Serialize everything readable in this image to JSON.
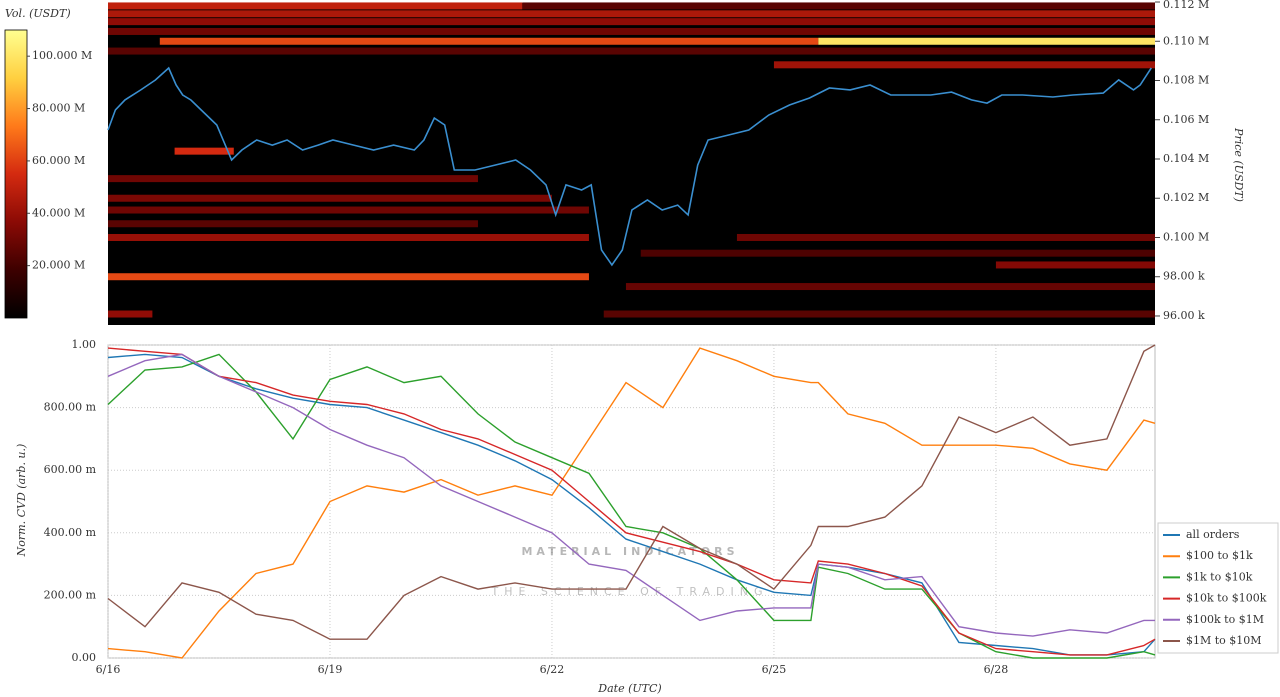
{
  "chart_data": [
    {
      "type": "heatmap",
      "colorbar_label": "Vol. (USDT)",
      "y_label": "Price (USDT)",
      "xlim": [
        16,
        30.15
      ],
      "ylim": [
        95540,
        111950
      ],
      "yticks": [
        {
          "value": 96000,
          "label": "96.00 k"
        },
        {
          "value": 98000,
          "label": "98.00 k"
        },
        {
          "value": 100000,
          "label": "0.100 M"
        },
        {
          "value": 102000,
          "label": "0.102 M"
        },
        {
          "value": 104000,
          "label": "0.104 M"
        },
        {
          "value": 106000,
          "label": "0.106 M"
        },
        {
          "value": 108000,
          "label": "0.108 M"
        },
        {
          "value": 110000,
          "label": "0.110 M"
        },
        {
          "value": 112000,
          "label": "0.112 M"
        }
      ],
      "clim": [
        0,
        110000000
      ],
      "cticks": [
        {
          "value": 20000000,
          "label": "20.000 M"
        },
        {
          "value": 40000000,
          "label": "40.000 M"
        },
        {
          "value": 60000000,
          "label": "60.000 M"
        },
        {
          "value": 80000000,
          "label": "80.000 M"
        },
        {
          "value": 100000000,
          "label": "100.000 M"
        }
      ],
      "colorscale": [
        "#000000",
        "#3d0000",
        "#8b0a05",
        "#d42a10",
        "#ff7a1a",
        "#ffd040",
        "#ffff90"
      ],
      "bands": [
        {
          "price": 111800,
          "start": 16,
          "end": 21.6,
          "volume": 50000000
        },
        {
          "price": 111800,
          "start": 21.6,
          "end": 30.15,
          "volume": 25000000
        },
        {
          "price": 111400,
          "start": 16,
          "end": 30.15,
          "volume": 45000000
        },
        {
          "price": 111000,
          "start": 16,
          "end": 30.15,
          "volume": 38000000
        },
        {
          "price": 110500,
          "start": 16,
          "end": 30.15,
          "volume": 30000000
        },
        {
          "price": 110000,
          "start": 16.7,
          "end": 25.6,
          "volume": 62000000
        },
        {
          "price": 110000,
          "start": 25.6,
          "end": 30.15,
          "volume": 100000000
        },
        {
          "price": 109500,
          "start": 16,
          "end": 30.15,
          "volume": 25000000
        },
        {
          "price": 108800,
          "start": 25,
          "end": 30.15,
          "volume": 42000000
        },
        {
          "price": 104400,
          "start": 16.9,
          "end": 17.7,
          "volume": 55000000
        },
        {
          "price": 103000,
          "start": 16,
          "end": 21,
          "volume": 30000000
        },
        {
          "price": 102000,
          "start": 16,
          "end": 22,
          "volume": 33000000
        },
        {
          "price": 101400,
          "start": 16,
          "end": 22.5,
          "volume": 30000000
        },
        {
          "price": 100700,
          "start": 16,
          "end": 21,
          "volume": 25000000
        },
        {
          "price": 100000,
          "start": 16,
          "end": 22.5,
          "volume": 40000000
        },
        {
          "price": 100000,
          "start": 24.5,
          "end": 30.15,
          "volume": 30000000
        },
        {
          "price": 99200,
          "start": 23.2,
          "end": 30.15,
          "volume": 22000000
        },
        {
          "price": 98600,
          "start": 28,
          "end": 30.15,
          "volume": 35000000
        },
        {
          "price": 98000,
          "start": 16,
          "end": 22.5,
          "volume": 62000000
        },
        {
          "price": 97500,
          "start": 23,
          "end": 30.15,
          "volume": 28000000
        },
        {
          "price": 96100,
          "start": 16,
          "end": 16.6,
          "volume": 38000000
        },
        {
          "price": 96100,
          "start": 22.7,
          "end": 30.15,
          "volume": 25000000
        }
      ],
      "price_line": {
        "color": "#3a8fd0",
        "x": [
          16.0,
          16.1,
          16.23,
          16.44,
          16.64,
          16.82,
          16.92,
          17.01,
          17.12,
          17.26,
          17.47,
          17.67,
          17.81,
          18.01,
          18.22,
          18.42,
          18.63,
          18.84,
          19.04,
          19.32,
          19.59,
          19.86,
          20.14,
          20.27,
          20.41,
          20.55,
          20.68,
          20.96,
          21.23,
          21.51,
          21.71,
          21.92,
          22.05,
          22.19,
          22.4,
          22.53,
          22.67,
          22.81,
          22.95,
          23.08,
          23.29,
          23.49,
          23.7,
          23.84,
          23.97,
          24.11,
          24.38,
          24.66,
          24.93,
          25.21,
          25.48,
          25.75,
          26.03,
          26.3,
          26.58,
          26.85,
          27.12,
          27.4,
          27.67,
          27.88,
          28.08,
          28.36,
          28.77,
          29.04,
          29.45,
          29.66,
          29.86,
          29.95,
          30.1
        ],
        "values": [
          105480,
          106500,
          107010,
          107516,
          108025,
          108637,
          107770,
          107261,
          107006,
          106496,
          105730,
          103950,
          104460,
          104970,
          104710,
          104970,
          104460,
          104710,
          104970,
          104710,
          104460,
          104710,
          104460,
          104970,
          106090,
          105730,
          103440,
          103440,
          103690,
          103950,
          103440,
          102680,
          101150,
          102680,
          102420,
          102680,
          99360,
          98600,
          99360,
          101400,
          101910,
          101400,
          101650,
          101150,
          103690,
          104970,
          105220,
          105480,
          106240,
          106750,
          107110,
          107620,
          107520,
          107770,
          107260,
          107260,
          107260,
          107410,
          107010,
          106850,
          107260,
          107260,
          107160,
          107260,
          107360,
          108030,
          107520,
          107770,
          108640
        ]
      }
    },
    {
      "type": "line",
      "y_label": "Norm. CVD (arb. u.)",
      "x_label": "Date (UTC)",
      "xlim": [
        16,
        30.15
      ],
      "ylim": [
        0,
        1
      ],
      "xticks": [
        {
          "value": 16,
          "label": "6/16"
        },
        {
          "value": 19,
          "label": "6/19"
        },
        {
          "value": 22,
          "label": "6/22"
        },
        {
          "value": 25,
          "label": "6/25"
        },
        {
          "value": 28,
          "label": "6/28"
        }
      ],
      "yticks": [
        {
          "value": 0,
          "label": "0.00"
        },
        {
          "value": 0.2,
          "label": "200.00 m"
        },
        {
          "value": 0.4,
          "label": "400.00 m"
        },
        {
          "value": 0.6,
          "label": "600.00 m"
        },
        {
          "value": 0.8,
          "label": "800.00 m"
        },
        {
          "value": 1,
          "label": "1.00"
        }
      ],
      "grid": true,
      "legend": "right",
      "watermark": [
        "MATERIAL INDICATORS",
        "THE SCIENCE OF TRADING"
      ],
      "x": [
        16,
        16.5,
        17,
        17.5,
        18,
        18.5,
        19,
        19.5,
        20,
        20.5,
        21,
        21.5,
        22,
        22.5,
        23,
        23.5,
        24,
        24.5,
        25,
        25.5,
        25.6,
        26,
        26.5,
        27,
        27.5,
        28,
        28.5,
        29,
        29.5,
        30,
        30.15
      ],
      "series": [
        {
          "name": "all orders",
          "color": "#1f77b4",
          "values": [
            0.96,
            0.97,
            0.96,
            0.9,
            0.86,
            0.83,
            0.81,
            0.8,
            0.76,
            0.72,
            0.68,
            0.63,
            0.57,
            0.48,
            0.38,
            0.34,
            0.3,
            0.25,
            0.21,
            0.2,
            0.3,
            0.29,
            0.27,
            0.24,
            0.05,
            0.04,
            0.03,
            0.01,
            0.01,
            0.02,
            0.06
          ]
        },
        {
          "name": "$100 to $1k",
          "color": "#ff7f0e",
          "values": [
            0.03,
            0.02,
            0.0,
            0.15,
            0.27,
            0.3,
            0.5,
            0.55,
            0.53,
            0.57,
            0.52,
            0.55,
            0.52,
            0.7,
            0.88,
            0.8,
            0.99,
            0.95,
            0.9,
            0.88,
            0.88,
            0.78,
            0.75,
            0.68,
            0.68,
            0.68,
            0.67,
            0.62,
            0.6,
            0.76,
            0.75
          ]
        },
        {
          "name": "$1k to $10k",
          "color": "#2ca02c",
          "values": [
            0.81,
            0.92,
            0.93,
            0.97,
            0.85,
            0.7,
            0.89,
            0.93,
            0.88,
            0.9,
            0.78,
            0.69,
            0.64,
            0.59,
            0.42,
            0.4,
            0.35,
            0.25,
            0.12,
            0.12,
            0.29,
            0.27,
            0.22,
            0.22,
            0.08,
            0.02,
            0.0,
            0.0,
            0.0,
            0.02,
            0.01
          ]
        },
        {
          "name": "$10k to $100k",
          "color": "#d62728",
          "values": [
            0.99,
            0.98,
            0.97,
            0.9,
            0.88,
            0.84,
            0.82,
            0.81,
            0.78,
            0.73,
            0.7,
            0.65,
            0.6,
            0.5,
            0.4,
            0.37,
            0.34,
            0.3,
            0.25,
            0.24,
            0.31,
            0.3,
            0.27,
            0.23,
            0.08,
            0.03,
            0.02,
            0.01,
            0.01,
            0.04,
            0.06
          ]
        },
        {
          "name": "$100k to $1M",
          "color": "#9467bd",
          "values": [
            0.9,
            0.95,
            0.97,
            0.9,
            0.85,
            0.8,
            0.73,
            0.68,
            0.64,
            0.55,
            0.5,
            0.45,
            0.4,
            0.3,
            0.28,
            0.2,
            0.12,
            0.15,
            0.16,
            0.16,
            0.3,
            0.29,
            0.25,
            0.26,
            0.1,
            0.08,
            0.07,
            0.09,
            0.08,
            0.12,
            0.12
          ]
        },
        {
          "name": "$1M to $10M",
          "color": "#8c564b",
          "values": [
            0.19,
            0.1,
            0.24,
            0.21,
            0.14,
            0.12,
            0.06,
            0.06,
            0.2,
            0.26,
            0.22,
            0.24,
            0.22,
            0.22,
            0.22,
            0.42,
            0.35,
            0.3,
            0.22,
            0.36,
            0.42,
            0.42,
            0.45,
            0.55,
            0.77,
            0.72,
            0.77,
            0.68,
            0.7,
            0.98,
            1.0
          ]
        }
      ]
    }
  ]
}
